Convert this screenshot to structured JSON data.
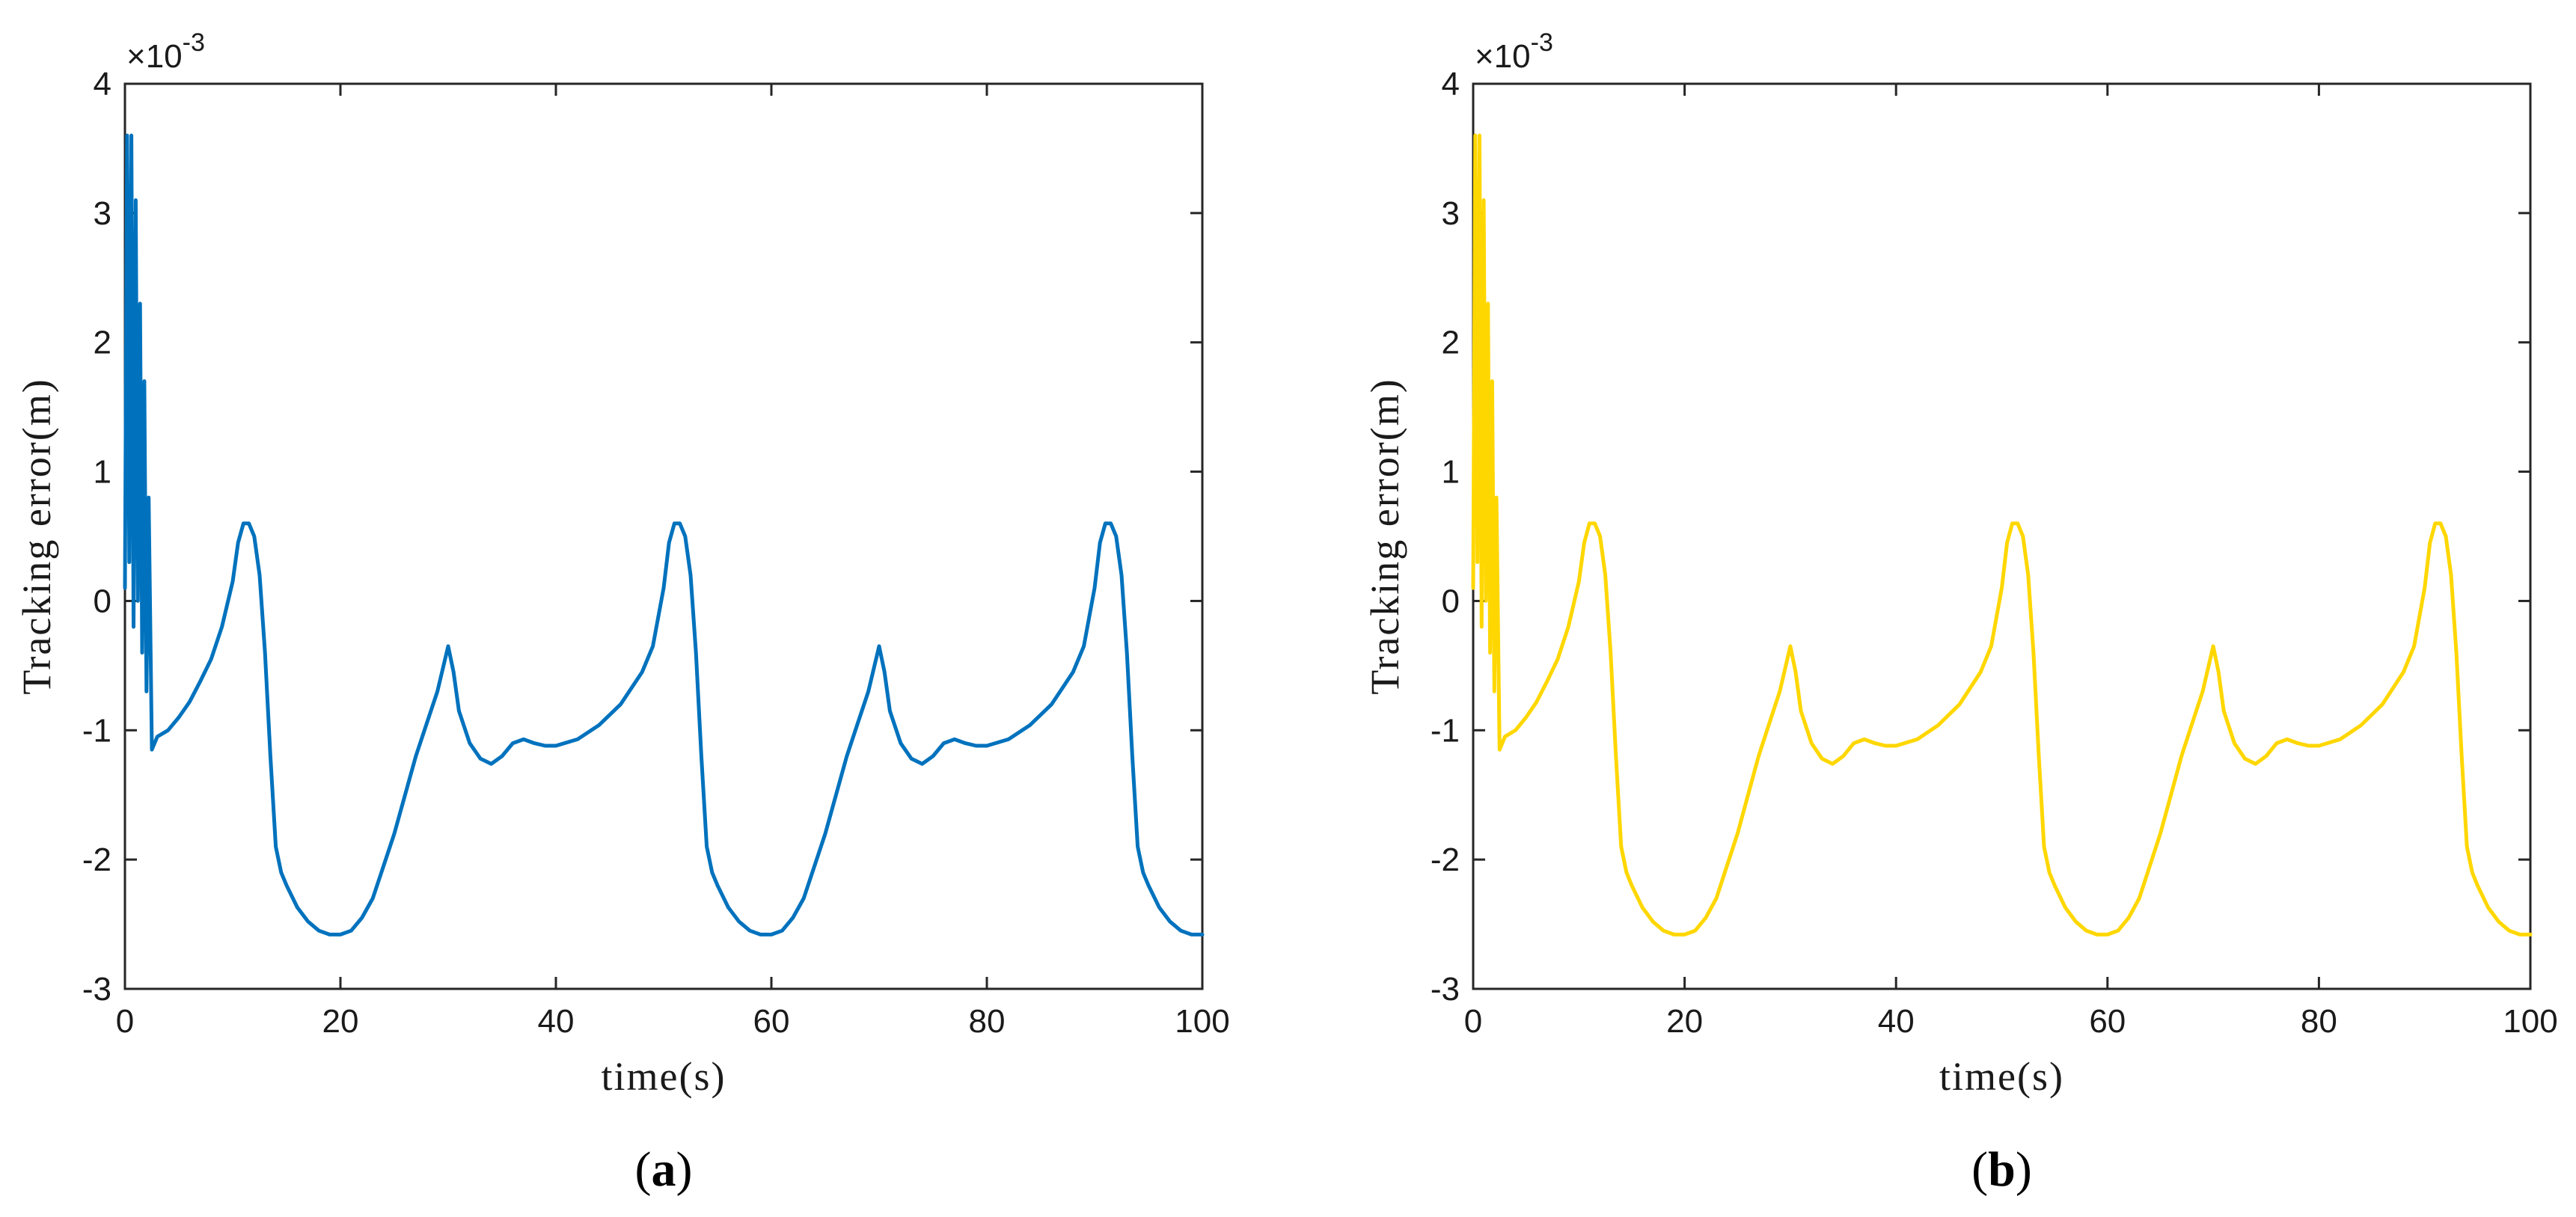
{
  "chart_data": [
    {
      "type": "line",
      "panel_label": "a",
      "xlabel": "time(s)",
      "ylabel": "Tracking error(m)",
      "y_scale_label": "×10",
      "y_scale_exponent": "-3",
      "xlim": [
        0,
        100
      ],
      "ylim": [
        -3,
        4
      ],
      "x_ticks": [
        "0",
        "20",
        "40",
        "60",
        "80",
        "100"
      ],
      "y_ticks": [
        "-3",
        "-2",
        "-1",
        "0",
        "1",
        "2",
        "3",
        "4"
      ],
      "grid": false,
      "series": [
        {
          "color": "#0072BD",
          "x": [
            0,
            0.2,
            0.4,
            0.6,
            0.8,
            1.0,
            1.2,
            1.4,
            1.6,
            1.8,
            2.0,
            2.2,
            2.5,
            3,
            4,
            5,
            6,
            7,
            8,
            9,
            10,
            10.5,
            11,
            11.5,
            12,
            12.5,
            13,
            13.5,
            14,
            14.5,
            15,
            16,
            17,
            18,
            19,
            20,
            21,
            22,
            23,
            24,
            25,
            26,
            27,
            28,
            29,
            30,
            30.5,
            31,
            32,
            33,
            34,
            35,
            36,
            37,
            38,
            39,
            40,
            42,
            44,
            46,
            48,
            49,
            50,
            50.5,
            51,
            51.5,
            52,
            52.5,
            53,
            53.5,
            54,
            54.5,
            55,
            56,
            57,
            58,
            59,
            60,
            61,
            62,
            63,
            64,
            65,
            66,
            67,
            68,
            69,
            70,
            70.5,
            71,
            72,
            73,
            74,
            75,
            76,
            77,
            78,
            79,
            80,
            82,
            84,
            86,
            88,
            89,
            90,
            90.5,
            91,
            91.5,
            92,
            92.5,
            93,
            93.5,
            94,
            94.5,
            95,
            96,
            97,
            98,
            99,
            100
          ],
          "y": [
            0.1,
            3.6,
            0.3,
            3.6,
            -0.2,
            3.1,
            0.0,
            2.3,
            -0.4,
            1.7,
            -0.7,
            0.8,
            -1.15,
            -1.05,
            -1.0,
            -0.9,
            -0.78,
            -0.62,
            -0.45,
            -0.2,
            0.15,
            0.45,
            0.6,
            0.6,
            0.5,
            0.2,
            -0.4,
            -1.2,
            -1.9,
            -2.1,
            -2.2,
            -2.37,
            -2.48,
            -2.55,
            -2.58,
            -2.58,
            -2.55,
            -2.45,
            -2.3,
            -2.05,
            -1.8,
            -1.5,
            -1.2,
            -0.95,
            -0.7,
            -0.35,
            -0.55,
            -0.85,
            -1.1,
            -1.22,
            -1.26,
            -1.2,
            -1.1,
            -1.07,
            -1.1,
            -1.12,
            -1.12,
            -1.07,
            -0.96,
            -0.8,
            -0.55,
            -0.35,
            0.1,
            0.45,
            0.6,
            0.6,
            0.5,
            0.2,
            -0.4,
            -1.2,
            -1.9,
            -2.1,
            -2.2,
            -2.37,
            -2.48,
            -2.55,
            -2.58,
            -2.58,
            -2.55,
            -2.45,
            -2.3,
            -2.05,
            -1.8,
            -1.5,
            -1.2,
            -0.95,
            -0.7,
            -0.35,
            -0.55,
            -0.85,
            -1.1,
            -1.22,
            -1.26,
            -1.2,
            -1.1,
            -1.07,
            -1.1,
            -1.12,
            -1.12,
            -1.07,
            -0.96,
            -0.8,
            -0.55,
            -0.35,
            0.1,
            0.45,
            0.6,
            0.6,
            0.5,
            0.2,
            -0.4,
            -1.2,
            -1.9,
            -2.1,
            -2.2,
            -2.37,
            -2.48,
            -2.55,
            -2.58,
            -2.58
          ]
        }
      ]
    },
    {
      "type": "line",
      "panel_label": "b",
      "xlabel": "time(s)",
      "ylabel": "Tracking error(m)",
      "y_scale_label": "×10",
      "y_scale_exponent": "-3",
      "xlim": [
        0,
        100
      ],
      "ylim": [
        -3,
        4
      ],
      "x_ticks": [
        "0",
        "20",
        "40",
        "60",
        "80",
        "100"
      ],
      "y_ticks": [
        "-3",
        "-2",
        "-1",
        "0",
        "1",
        "2",
        "3",
        "4"
      ],
      "grid": false,
      "series": [
        {
          "color": "#FFD700",
          "x": [
            0,
            0.2,
            0.4,
            0.6,
            0.8,
            1.0,
            1.2,
            1.4,
            1.6,
            1.8,
            2.0,
            2.2,
            2.5,
            3,
            4,
            5,
            6,
            7,
            8,
            9,
            10,
            10.5,
            11,
            11.5,
            12,
            12.5,
            13,
            13.5,
            14,
            14.5,
            15,
            16,
            17,
            18,
            19,
            20,
            21,
            22,
            23,
            24,
            25,
            26,
            27,
            28,
            29,
            30,
            30.5,
            31,
            32,
            33,
            34,
            35,
            36,
            37,
            38,
            39,
            40,
            42,
            44,
            46,
            48,
            49,
            50,
            50.5,
            51,
            51.5,
            52,
            52.5,
            53,
            53.5,
            54,
            54.5,
            55,
            56,
            57,
            58,
            59,
            60,
            61,
            62,
            63,
            64,
            65,
            66,
            67,
            68,
            69,
            70,
            70.5,
            71,
            72,
            73,
            74,
            75,
            76,
            77,
            78,
            79,
            80,
            82,
            84,
            86,
            88,
            89,
            90,
            90.5,
            91,
            91.5,
            92,
            92.5,
            93,
            93.5,
            94,
            94.5,
            95,
            96,
            97,
            98,
            99,
            100
          ],
          "y": [
            0.1,
            3.6,
            0.3,
            3.6,
            -0.2,
            3.1,
            0.0,
            2.3,
            -0.4,
            1.7,
            -0.7,
            0.8,
            -1.15,
            -1.05,
            -1.0,
            -0.9,
            -0.78,
            -0.62,
            -0.45,
            -0.2,
            0.15,
            0.45,
            0.6,
            0.6,
            0.5,
            0.2,
            -0.4,
            -1.2,
            -1.9,
            -2.1,
            -2.2,
            -2.37,
            -2.48,
            -2.55,
            -2.58,
            -2.58,
            -2.55,
            -2.45,
            -2.3,
            -2.05,
            -1.8,
            -1.5,
            -1.2,
            -0.95,
            -0.7,
            -0.35,
            -0.55,
            -0.85,
            -1.1,
            -1.22,
            -1.26,
            -1.2,
            -1.1,
            -1.07,
            -1.1,
            -1.12,
            -1.12,
            -1.07,
            -0.96,
            -0.8,
            -0.55,
            -0.35,
            0.1,
            0.45,
            0.6,
            0.6,
            0.5,
            0.2,
            -0.4,
            -1.2,
            -1.9,
            -2.1,
            -2.2,
            -2.37,
            -2.48,
            -2.55,
            -2.58,
            -2.58,
            -2.55,
            -2.45,
            -2.3,
            -2.05,
            -1.8,
            -1.5,
            -1.2,
            -0.95,
            -0.7,
            -0.35,
            -0.55,
            -0.85,
            -1.1,
            -1.22,
            -1.26,
            -1.2,
            -1.1,
            -1.07,
            -1.1,
            -1.12,
            -1.12,
            -1.07,
            -0.96,
            -0.8,
            -0.55,
            -0.35,
            0.1,
            0.45,
            0.6,
            0.6,
            0.5,
            0.2,
            -0.4,
            -1.2,
            -1.9,
            -2.1,
            -2.2,
            -2.37,
            -2.48,
            -2.55,
            -2.58,
            -2.58
          ]
        }
      ]
    }
  ]
}
